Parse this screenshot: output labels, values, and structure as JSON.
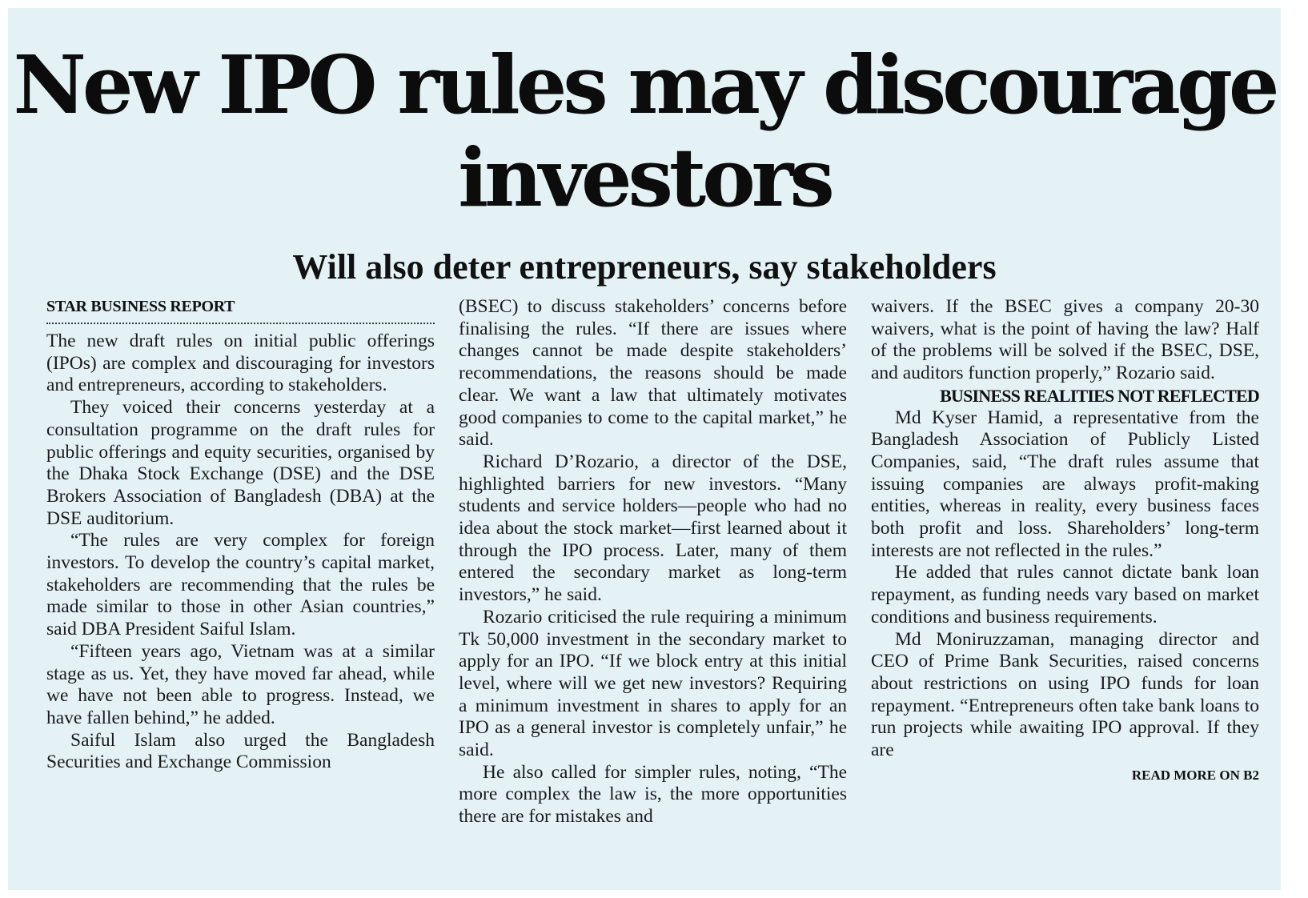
{
  "article": {
    "headline": "New IPO rules may discourage investors",
    "subheadline": "Will also deter entrepreneurs, say stakeholders",
    "byline": "STAR BUSINESS REPORT",
    "columns": {
      "col1": {
        "p1": "The new draft rules on initial public offerings (IPOs) are complex and discouraging for investors and entrepreneurs, according to stakeholders.",
        "p2": "They voiced their concerns yesterday at a consultation programme on the draft rules for public offerings and equity securities, organised by the Dhaka Stock Exchange (DSE) and the DSE Brokers Association of Bangladesh (DBA) at the DSE auditorium.",
        "p3": "“The rules are very complex for foreign investors. To develop the country’s capital market, stakeholders are recommending that the rules be made similar to those in other Asian countries,” said DBA President Saiful Islam.",
        "p4": "“Fifteen years ago, Vietnam was at a similar stage as us. Yet, they have moved far ahead, while we have not been able to progress. Instead, we have fallen behind,” he added.",
        "p5": "Saiful Islam also urged the Bangladesh Securities and Exchange Commission"
      },
      "col2": {
        "p1": "(BSEC) to discuss stakeholders’ concerns before finalising the rules. “If there are issues where changes cannot be made despite stakeholders’ recommendations, the reasons should be made clear. We want a law that ultimately motivates good companies to come to the capital market,” he said.",
        "p2": "Richard D’Rozario, a director of the DSE, highlighted barriers for new investors. “Many students and service holders—people who had no idea about the stock market—first learned about it through the IPO process. Later, many of them entered the secondary market as long-term investors,” he said.",
        "p3": "Rozario criticised the rule requiring a minimum Tk 50,000 investment in the secondary market to apply for an IPO. “If we block entry at this initial level, where will we get new investors? Requiring a minimum investment in shares to apply for an IPO as a general investor is completely unfair,” he said.",
        "p4": "He also called for simpler rules, noting, “The more complex the law is, the more opportunities there are for mistakes and"
      },
      "col3": {
        "p1": "waivers. If the BSEC gives a company 20-30 waivers, what is the point of having the law? Half of the problems will be solved if the BSEC, DSE, and auditors function properly,” Rozario said.",
        "subheading": "BUSINESS REALITIES NOT REFLECTED",
        "p2": "Md Kyser Hamid, a representative from the Bangladesh Association of Publicly Listed Companies, said, “The draft rules assume that issuing companies are always profit-making entities, whereas in reality, every business faces both profit and loss. Shareholders’ long-term interests are not reflected in the rules.”",
        "p3": "He added that rules cannot dictate bank loan repayment, as funding needs vary based on market conditions and business requirements.",
        "p4": "Md Moniruzzaman, managing director and CEO of Prime Bank Securities, raised concerns about restrictions on using IPO funds for loan repayment. “Entrepreneurs often take bank loans to run projects while awaiting IPO approval. If they are",
        "read_more": "READ MORE ON B2"
      }
    }
  }
}
